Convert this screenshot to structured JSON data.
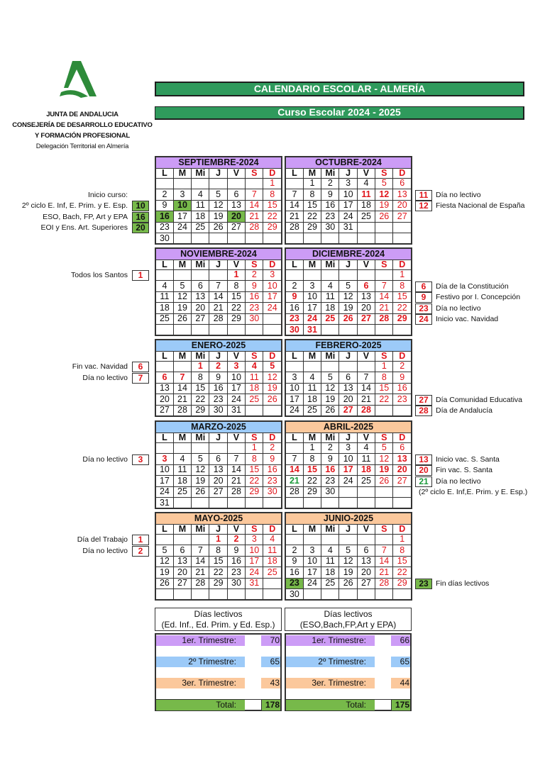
{
  "header": {
    "title": "CALENDARIO ESCOLAR - ALMERÍA",
    "subtitle": "Curso Escolar   2024 - 2025",
    "org": [
      "JUNTA DE ANDALUCIA",
      "CONSEJERÍA DE DESARROLLO EDUCATIVO",
      "Y FORMACIÓN PROFESIONAL"
    ],
    "delegation": "Delegación Territorial en Almería",
    "logo_text": "Junta de Andalucía"
  },
  "colors": {
    "title_green": "#2f9a5c",
    "trim1": "#cc9cf6",
    "trim2": "#9ccaf8",
    "trim3": "#fbc89c",
    "highlight_green": "#77b94a",
    "holiday_red": "#e0151b"
  },
  "day_names": [
    "L",
    "M",
    "Mi",
    "J",
    "V",
    "S",
    "D"
  ],
  "months": [
    {
      "name": "SEPTIEMBRE-2024",
      "trimester": 1,
      "holidays": [],
      "green_fill": [
        10,
        16,
        20
      ],
      "green_text": [],
      "weeks": [
        [
          null,
          null,
          null,
          null,
          null,
          null,
          1
        ],
        [
          2,
          3,
          4,
          5,
          6,
          7,
          8
        ],
        [
          9,
          10,
          11,
          12,
          13,
          14,
          15
        ],
        [
          16,
          17,
          18,
          19,
          20,
          21,
          22
        ],
        [
          23,
          24,
          25,
          26,
          27,
          28,
          29
        ],
        [
          30,
          null,
          null,
          null,
          null,
          null,
          null
        ]
      ]
    },
    {
      "name": "OCTUBRE-2024",
      "trimester": 1,
      "holidays": [
        11,
        12
      ],
      "green_fill": [],
      "green_text": [],
      "weeks": [
        [
          null,
          1,
          2,
          3,
          4,
          5,
          6
        ],
        [
          7,
          8,
          9,
          10,
          11,
          12,
          13
        ],
        [
          14,
          15,
          16,
          17,
          18,
          19,
          20
        ],
        [
          21,
          22,
          23,
          24,
          25,
          26,
          27
        ],
        [
          28,
          29,
          30,
          31,
          null,
          null,
          null
        ]
      ]
    },
    {
      "name": "NOVIEMBRE-2024",
      "trimester": 1,
      "holidays": [
        1
      ],
      "green_fill": [],
      "green_text": [],
      "weeks": [
        [
          null,
          null,
          null,
          null,
          1,
          2,
          3
        ],
        [
          4,
          5,
          6,
          7,
          8,
          9,
          10
        ],
        [
          11,
          12,
          13,
          14,
          15,
          16,
          17
        ],
        [
          18,
          19,
          20,
          21,
          22,
          23,
          24
        ],
        [
          25,
          26,
          27,
          28,
          29,
          30,
          null
        ]
      ]
    },
    {
      "name": "DICIEMBRE-2024",
      "trimester": 1,
      "holidays": [
        6,
        9,
        23,
        24,
        25,
        26,
        27,
        28,
        29,
        30,
        31
      ],
      "green_fill": [],
      "green_text": [],
      "weeks": [
        [
          null,
          null,
          null,
          null,
          null,
          null,
          1
        ],
        [
          2,
          3,
          4,
          5,
          6,
          7,
          8
        ],
        [
          9,
          10,
          11,
          12,
          13,
          14,
          15
        ],
        [
          16,
          17,
          18,
          19,
          20,
          21,
          22
        ],
        [
          23,
          24,
          25,
          26,
          27,
          28,
          29
        ],
        [
          30,
          31,
          null,
          null,
          null,
          null,
          null
        ]
      ]
    },
    {
      "name": "ENERO-2025",
      "trimester": 2,
      "holidays": [
        1,
        2,
        3,
        4,
        5,
        6,
        7
      ],
      "green_fill": [],
      "green_text": [],
      "weeks": [
        [
          null,
          null,
          1,
          2,
          3,
          4,
          5
        ],
        [
          6,
          7,
          8,
          9,
          10,
          11,
          12
        ],
        [
          13,
          14,
          15,
          16,
          17,
          18,
          19
        ],
        [
          20,
          21,
          22,
          23,
          24,
          25,
          26
        ],
        [
          27,
          28,
          29,
          30,
          31,
          null,
          null
        ]
      ]
    },
    {
      "name": "FEBRERO-2025",
      "trimester": 2,
      "holidays": [
        27,
        28
      ],
      "green_fill": [],
      "green_text": [],
      "weeks": [
        [
          null,
          null,
          null,
          null,
          null,
          1,
          2
        ],
        [
          3,
          4,
          5,
          6,
          7,
          8,
          9
        ],
        [
          10,
          11,
          12,
          13,
          14,
          15,
          16
        ],
        [
          17,
          18,
          19,
          20,
          21,
          22,
          23
        ],
        [
          24,
          25,
          26,
          27,
          28,
          null,
          null
        ]
      ]
    },
    {
      "name": "MARZO-2025",
      "trimester": 2,
      "holidays": [
        3
      ],
      "green_fill": [],
      "green_text": [],
      "weeks": [
        [
          null,
          null,
          null,
          null,
          null,
          1,
          2
        ],
        [
          3,
          4,
          5,
          6,
          7,
          8,
          9
        ],
        [
          10,
          11,
          12,
          13,
          14,
          15,
          16
        ],
        [
          17,
          18,
          19,
          20,
          21,
          22,
          23
        ],
        [
          24,
          25,
          26,
          27,
          28,
          29,
          30
        ],
        [
          31,
          null,
          null,
          null,
          null,
          null,
          null
        ]
      ]
    },
    {
      "name": "ABRIL-2025",
      "trimester": 3,
      "holidays": [
        13,
        14,
        15,
        16,
        17,
        18,
        19,
        20
      ],
      "green_fill": [],
      "green_text": [
        21
      ],
      "weeks": [
        [
          null,
          1,
          2,
          3,
          4,
          5,
          6
        ],
        [
          7,
          8,
          9,
          10,
          11,
          12,
          13
        ],
        [
          14,
          15,
          16,
          17,
          18,
          19,
          20
        ],
        [
          21,
          22,
          23,
          24,
          25,
          26,
          27
        ],
        [
          28,
          29,
          30,
          null,
          null,
          null,
          null
        ]
      ]
    },
    {
      "name": "MAYO-2025",
      "trimester": 3,
      "holidays": [
        1,
        2
      ],
      "green_fill": [],
      "green_text": [],
      "weeks": [
        [
          null,
          null,
          null,
          1,
          2,
          3,
          4
        ],
        [
          5,
          6,
          7,
          8,
          9,
          10,
          11
        ],
        [
          12,
          13,
          14,
          15,
          16,
          17,
          18
        ],
        [
          19,
          20,
          21,
          22,
          23,
          24,
          25
        ],
        [
          26,
          27,
          28,
          29,
          30,
          31,
          null
        ]
      ]
    },
    {
      "name": "JUNIO-2025",
      "trimester": 3,
      "holidays": [],
      "green_fill": [
        23
      ],
      "green_text": [],
      "weeks": [
        [
          null,
          null,
          null,
          null,
          null,
          null,
          1
        ],
        [
          2,
          3,
          4,
          5,
          6,
          7,
          8
        ],
        [
          9,
          10,
          11,
          12,
          13,
          14,
          15
        ],
        [
          16,
          17,
          18,
          19,
          20,
          21,
          22
        ],
        [
          23,
          24,
          25,
          26,
          27,
          28,
          29
        ],
        [
          30,
          null,
          null,
          null,
          null,
          null,
          null
        ]
      ]
    }
  ],
  "notes": [
    {
      "pair": 0,
      "side": "left",
      "week": 1,
      "text": "Inicio curso:",
      "day": null,
      "style": ""
    },
    {
      "pair": 0,
      "side": "left",
      "week": 2,
      "text": "2º ciclo E. Inf, E. Prim. y E. Esp.",
      "day": "10",
      "style": "green"
    },
    {
      "pair": 0,
      "side": "left",
      "week": 3,
      "text": "ESO, Bach, FP, Art y EPA",
      "day": "16",
      "style": "green"
    },
    {
      "pair": 0,
      "side": "left",
      "week": 4,
      "text": "EOI y  Ens. Art. Superiores",
      "day": "20",
      "style": "green"
    },
    {
      "pair": 0,
      "side": "right",
      "week": 1,
      "text": "Día no lectivo",
      "day": "11",
      "style": "red"
    },
    {
      "pair": 0,
      "side": "right",
      "week": 2,
      "text": "Fiesta Nacional de España",
      "day": "12",
      "style": "red"
    },
    {
      "pair": 1,
      "side": "left",
      "week": 0,
      "text": "Todos los Santos",
      "day": "1",
      "style": "red"
    },
    {
      "pair": 1,
      "side": "right",
      "week": 1,
      "text": "Día de la Constitución",
      "day": "6",
      "style": "red"
    },
    {
      "pair": 1,
      "side": "right",
      "week": 2,
      "text": "Festivo por I. Concepción",
      "day": "9",
      "style": "red"
    },
    {
      "pair": 1,
      "side": "right",
      "week": 3,
      "text": "Día no lectivo",
      "day": "23",
      "style": "red"
    },
    {
      "pair": 1,
      "side": "right",
      "week": 4,
      "text": "Inicio vac. Navidad",
      "day": "24",
      "style": "red"
    },
    {
      "pair": 2,
      "side": "left",
      "week": 0,
      "text": "Fin vac. Navidad",
      "day": "6",
      "style": "red"
    },
    {
      "pair": 2,
      "side": "left",
      "week": 1,
      "text": "Día no lectivo",
      "day": "7",
      "style": "red"
    },
    {
      "pair": 2,
      "side": "right",
      "week": 3,
      "text": "Día Comunidad Educativa",
      "day": "27",
      "style": "red"
    },
    {
      "pair": 2,
      "side": "right",
      "week": 4,
      "text": "Día de Andalucía",
      "day": "28",
      "style": "red"
    },
    {
      "pair": 3,
      "side": "left",
      "week": 1,
      "text": "Día no lectivo",
      "day": "3",
      "style": "red"
    },
    {
      "pair": 3,
      "side": "right",
      "week": 1,
      "text": "Inicio vac. S. Santa",
      "day": "13",
      "style": "red"
    },
    {
      "pair": 3,
      "side": "right",
      "week": 2,
      "text": "Fin vac. S. Santa",
      "day": "20",
      "style": "red"
    },
    {
      "pair": 3,
      "side": "right",
      "week": 3,
      "text": "Día no lectivo",
      "day": "21",
      "style": "greentext"
    },
    {
      "pair": 3,
      "side": "right",
      "week": 4,
      "text": "(2º ciclo E. Inf,E. Prim. y E. Esp.)",
      "day": null,
      "style": "paren"
    },
    {
      "pair": 4,
      "side": "left",
      "week": 0,
      "text": "Día del Trabajo",
      "day": "1",
      "style": "red"
    },
    {
      "pair": 4,
      "side": "left",
      "week": 1,
      "text": "Día no lectivo",
      "day": "2",
      "style": "red"
    },
    {
      "pair": 4,
      "side": "right",
      "week": 4,
      "text": "Fin días lectivos",
      "day": "23",
      "style": "green"
    }
  ],
  "summary": [
    {
      "title": "Días lectivos",
      "subtitle": "(Ed. Inf., Ed. Prim. y Ed. Esp.)",
      "rows": [
        {
          "label": "1er. Trimestre:",
          "value": "70"
        },
        {
          "label": "2º Trimestre:",
          "value": "65"
        },
        {
          "label": "3er. Trimestre:",
          "value": "43"
        },
        {
          "label": "Total:",
          "value": "178"
        }
      ]
    },
    {
      "title": "Días lectivos",
      "subtitle": "(ESO,Bach,FP,Art y EPA)",
      "rows": [
        {
          "label": "1er. Trimestre:",
          "value": "66"
        },
        {
          "label": "2º Trimestre:",
          "value": "65"
        },
        {
          "label": "3er. Trimestre:",
          "value": "44"
        },
        {
          "label": "Total:",
          "value": "175"
        }
      ]
    }
  ]
}
